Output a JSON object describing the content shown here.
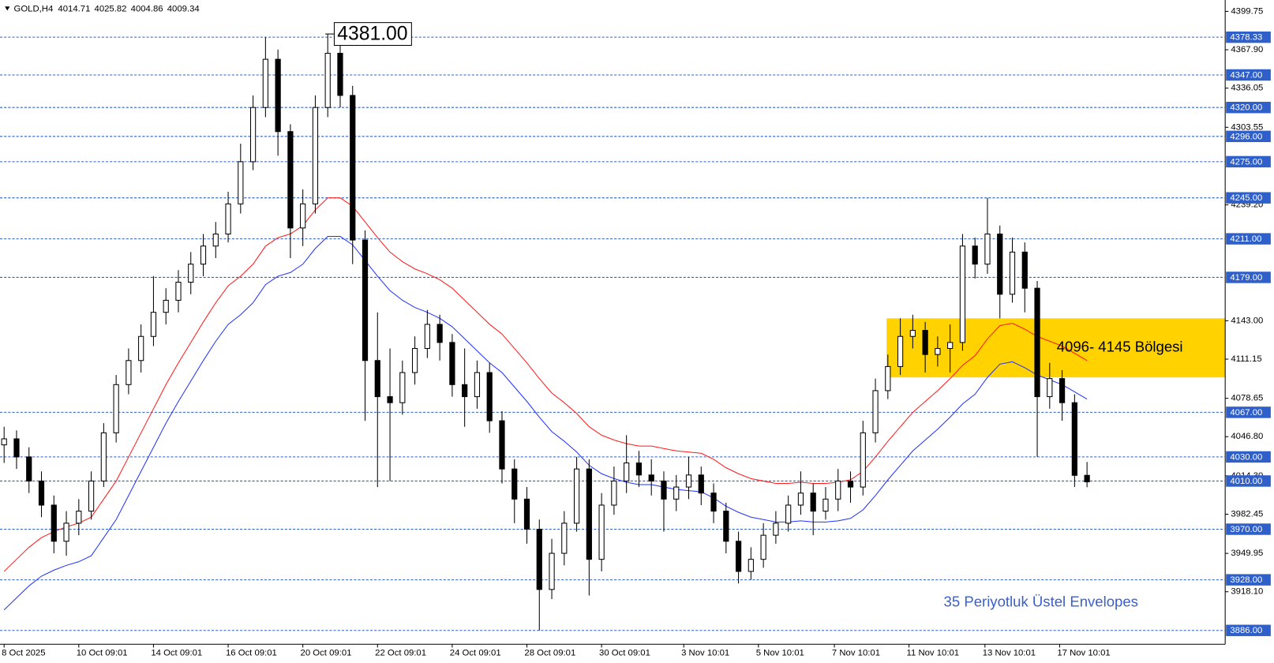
{
  "chart_data": {
    "type": "candlestick",
    "title": "GOLD,H4",
    "xlim": [
      -0.33,
      98.1
    ],
    "ylim": [
      3874.5,
      4409.2
    ],
    "xticks": [
      {
        "value": 0,
        "label": "8 Oct 2025"
      },
      {
        "value": 6,
        "label": "10 Oct 09:01"
      },
      {
        "value": 12,
        "label": "14 Oct 09:01"
      },
      {
        "value": 18,
        "label": "16 Oct 09:01"
      },
      {
        "value": 24,
        "label": "20 Oct 09:01"
      },
      {
        "value": 30,
        "label": "22 Oct 09:01"
      },
      {
        "value": 36,
        "label": "24 Oct 09:01"
      },
      {
        "value": 42,
        "label": "28 Oct 09:01"
      },
      {
        "value": 48,
        "label": "30 Oct 09:01"
      },
      {
        "value": 54.6,
        "label": "3 Nov 10:01"
      },
      {
        "value": 60.6,
        "label": "5 Nov 10:01"
      },
      {
        "value": 66.7,
        "label": "7 Nov 10:01"
      },
      {
        "value": 72.7,
        "label": "11 Nov 10:01"
      },
      {
        "value": 78.8,
        "label": "13 Nov 10:01"
      },
      {
        "value": 84.8,
        "label": "17 Nov 10:01"
      }
    ],
    "yticks": [
      4399.75,
      {
        "value": 4367.9,
        "label": "4367.90"
      },
      4336.05,
      4303.55,
      {
        "value": 4239.2,
        "label": "4239.20"
      },
      {
        "value": 4143,
        "label": "4143.00"
      },
      4111.15,
      4078.65,
      {
        "value": 4046.8,
        "label": "4046.80"
      },
      {
        "value": 4014.3,
        "label": "4014.30"
      },
      3982.45,
      3949.95,
      {
        "value": 3918.1,
        "label": "3918.10"
      }
    ],
    "levels": [
      4378.33,
      {
        "value": 4347,
        "label": "4347.00"
      },
      {
        "value": 4320,
        "label": "4320.00"
      },
      {
        "value": 4296,
        "label": "4296.00"
      },
      {
        "value": 4275,
        "label": "4275.00"
      },
      {
        "value": 4245,
        "label": "4245.00"
      },
      {
        "value": 4211,
        "label": "4211.00"
      },
      {
        "value": 4179,
        "label": "4179.00"
      },
      {
        "value": 4067,
        "label": "4067.00"
      },
      {
        "value": 4030,
        "label": "4030.00"
      },
      {
        "value": 4010,
        "label": "4010.00"
      },
      {
        "value": 3970,
        "label": "3970.00"
      },
      {
        "value": 3928,
        "label": "3928.00"
      },
      {
        "value": 3886,
        "label": "3886.00"
      }
    ],
    "level_color": "#2f5fc8",
    "up_color": "#ffffff",
    "down_color": "#000000",
    "candles": {
      "open": [
        4040,
        4045,
        4030,
        4010,
        3990,
        3960,
        3975,
        3985,
        4010,
        4050,
        4090,
        4110,
        4130,
        4150,
        4160,
        4175,
        4190,
        4205,
        4215,
        4240,
        4275,
        4320,
        4360,
        4300,
        4220,
        4240,
        4320,
        4365,
        4330,
        4210,
        4110,
        4080,
        4075,
        4100,
        4120,
        4140,
        4125,
        4090,
        4080,
        4100,
        4060,
        4020,
        3995,
        3970,
        3920,
        3950,
        3975,
        4020,
        3945,
        3990,
        4010,
        4025,
        4015,
        4010,
        3995,
        4005,
        4015,
        4000,
        3985,
        3960,
        3935,
        3945,
        3965,
        3975,
        3990,
        4000,
        3985,
        3995,
        4010,
        4005,
        4050,
        4085,
        4105,
        4130,
        4135,
        4115,
        4120,
        4125,
        4205,
        4190,
        4215,
        4165,
        4200,
        4170,
        4080,
        4095,
        4075,
        4014.71
      ],
      "high": [
        4055,
        4052,
        4038,
        4018,
        3998,
        3985,
        3995,
        4018,
        4058,
        4098,
        4120,
        4140,
        4180,
        4170,
        4185,
        4200,
        4215,
        4225,
        4250,
        4290,
        4330,
        4378.33,
        4368,
        4306,
        4252,
        4330,
        4381,
        4372,
        4338,
        4218,
        4150,
        4120,
        4110,
        4130,
        4152,
        4148,
        4132,
        4120,
        4110,
        4108,
        4068,
        4028,
        4005,
        3978,
        3962,
        3985,
        4030,
        4028,
        4000,
        4022,
        4048,
        4035,
        4028,
        4018,
        4015,
        4030,
        4022,
        4008,
        3992,
        3968,
        3955,
        3975,
        3985,
        3998,
        4018,
        4008,
        4005,
        4020,
        4018,
        4060,
        4095,
        4115,
        4145,
        4148,
        4142,
        4130,
        4140,
        4215,
        4212,
        4245,
        4222,
        4212,
        4208,
        4176,
        4108,
        4102,
        4082,
        4025.82
      ],
      "low": [
        4025,
        4020,
        4000,
        3980,
        3950,
        3948,
        3965,
        3978,
        4005,
        4042,
        4082,
        4100,
        4122,
        4140,
        4150,
        4165,
        4180,
        4195,
        4208,
        4232,
        4268,
        4312,
        4280,
        4195,
        4205,
        4232,
        4312,
        4320,
        4190,
        4060,
        4005,
        4010,
        4065,
        4090,
        4112,
        4110,
        4080,
        4055,
        4070,
        4050,
        4008,
        3975,
        3958,
        3886,
        3912,
        3940,
        3968,
        3915,
        3935,
        3982,
        4000,
        4005,
        3998,
        3968,
        3985,
        3995,
        3990,
        3975,
        3950,
        3925,
        3928,
        3938,
        3958,
        3968,
        3982,
        3965,
        3978,
        3985,
        3992,
        3998,
        4042,
        4078,
        4098,
        4120,
        4100,
        4105,
        4100,
        4118,
        4178,
        4182,
        4145,
        4158,
        4150,
        4030,
        4070,
        4060,
        4005,
        4004.86
      ],
      "close": [
        4045,
        4030,
        4010,
        3990,
        3960,
        3975,
        3985,
        4010,
        4050,
        4090,
        4110,
        4130,
        4150,
        4160,
        4175,
        4190,
        4205,
        4215,
        4240,
        4275,
        4320,
        4360,
        4300,
        4220,
        4240,
        4320,
        4365,
        4330,
        4210,
        4110,
        4080,
        4075,
        4100,
        4120,
        4140,
        4125,
        4090,
        4080,
        4100,
        4060,
        4020,
        3995,
        3970,
        3920,
        3950,
        3975,
        4020,
        3945,
        3990,
        4010,
        4025,
        4015,
        4010,
        3995,
        4005,
        4015,
        4000,
        3985,
        3960,
        3935,
        3945,
        3965,
        3975,
        3990,
        4000,
        3985,
        3995,
        4010,
        4005,
        4050,
        4085,
        4105,
        4130,
        4135,
        4115,
        4120,
        4125,
        4205,
        4190,
        4215,
        4165,
        4200,
        4170,
        4080,
        4095,
        4075,
        4014.71,
        4009.34
      ]
    },
    "envelope_upper": {
      "color": "#ff1a1a",
      "values": [
        3935,
        3945,
        3955,
        3963,
        3968,
        3972,
        3975,
        3980,
        3995,
        4010,
        4030,
        4050,
        4070,
        4090,
        4108,
        4125,
        4142,
        4158,
        4172,
        4180,
        4190,
        4205,
        4212,
        4215,
        4222,
        4235,
        4245,
        4245,
        4238,
        4225,
        4212,
        4200,
        4192,
        4186,
        4182,
        4177,
        4170,
        4160,
        4150,
        4140,
        4132,
        4120,
        4108,
        4095,
        4083,
        4075,
        4066,
        4055,
        4048,
        4044,
        4041,
        4039,
        4039,
        4037,
        4035,
        4034,
        4033,
        4028,
        4021,
        4016,
        4012,
        4010,
        4008,
        4008,
        4009,
        4008,
        4008,
        4009,
        4011,
        4018,
        4030,
        4043,
        4055,
        4067,
        4076,
        4085,
        4095,
        4106,
        4114,
        4128,
        4139,
        4141,
        4136,
        4130,
        4126,
        4122,
        4116,
        4110
      ]
    },
    "envelope_lower": {
      "color": "#2233ff",
      "values": [
        3903,
        3913,
        3923,
        3931,
        3936,
        3940,
        3943,
        3948,
        3963,
        3978,
        3998,
        4018,
        4038,
        4058,
        4076,
        4093,
        4110,
        4126,
        4140,
        4148,
        4158,
        4173,
        4180,
        4183,
        4190,
        4203,
        4213,
        4213,
        4206,
        4193,
        4180,
        4168,
        4160,
        4154,
        4150,
        4145,
        4138,
        4128,
        4118,
        4108,
        4100,
        4088,
        4076,
        4063,
        4051,
        4043,
        4034,
        4023,
        4016,
        4012,
        4009,
        4007,
        4007,
        4005,
        4003,
        4002,
        4001,
        3996,
        3989,
        3984,
        3980,
        3978,
        3976,
        3976,
        3977,
        3976,
        3976,
        3977,
        3979,
        3986,
        3998,
        4011,
        4023,
        4035,
        4044,
        4053,
        4063,
        4074,
        4082,
        4096,
        4107,
        4109,
        4104,
        4098,
        4094,
        4090,
        4084,
        4078
      ]
    },
    "zone": {
      "label": "4096- 4145 Bölgesi",
      "from": 4096,
      "to": 4145,
      "start": 70.9,
      "color": "#ffd200"
    },
    "annotation": {
      "value": 4381,
      "label": "4381.00"
    },
    "note": {
      "text": "35 Periyotluk Üstel Envelopes",
      "color": "#3a5fcd"
    }
  }
}
